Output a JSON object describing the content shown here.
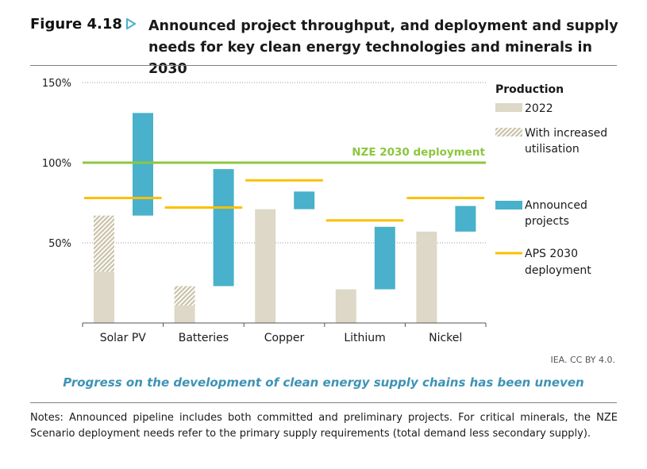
{
  "figure": {
    "label": "Figure 4.18",
    "title": "Announced project throughput, and deployment and supply needs for key clean energy technologies and minerals in 2030",
    "source": "IEA. CC BY 4.0.",
    "caption": "Progress on the development of clean energy supply chains has been uneven",
    "notes": "Notes: Announced pipeline includes both committed and preliminary projects. For critical minerals, the NZE Scenario deployment needs refer to the primary supply requirements (total demand less secondary supply)."
  },
  "colors": {
    "production_2022": "#ddd8c7",
    "increased_utilisation": "#c9c2a9",
    "announced_projects": "#49b1cb",
    "aps_2030": "#fcc000",
    "nze_2030": "#8dc63f",
    "arrow": "#49b1cb"
  },
  "chart_data": {
    "type": "bar",
    "categories": [
      "Solar PV",
      "Batteries",
      "Copper",
      "Lithium",
      "Nickel"
    ],
    "ylim": [
      0,
      150
    ],
    "yticks": [
      50,
      100,
      150
    ],
    "ytick_labels": [
      "50%",
      "100%",
      "150%"
    ],
    "grid": "dotted at 50% and 150%",
    "legend_title": "Production",
    "series": [
      {
        "name": "2022",
        "values": [
          32,
          11,
          71,
          21,
          57
        ]
      },
      {
        "name": "With increased utilisation",
        "ranges": [
          [
            32,
            67
          ],
          [
            11,
            23
          ],
          null,
          null,
          null
        ]
      },
      {
        "name": "Announced projects",
        "ranges": [
          [
            67,
            131
          ],
          [
            23,
            96
          ],
          [
            71,
            82
          ],
          [
            21,
            60
          ],
          [
            57,
            73
          ]
        ]
      },
      {
        "name": "APS 2030 deployment",
        "values": [
          78,
          72,
          89,
          64,
          78
        ]
      }
    ],
    "reference_line": {
      "name": "NZE 2030 deployment",
      "value": 100
    },
    "legend": [
      {
        "key": "production_2022",
        "label": "2022"
      },
      {
        "key": "increased_utilisation",
        "label": "With increased utilisation"
      },
      {
        "key": "announced_projects",
        "label": "Announced projects"
      },
      {
        "key": "aps_2030",
        "label": "APS 2030 deployment"
      }
    ]
  }
}
